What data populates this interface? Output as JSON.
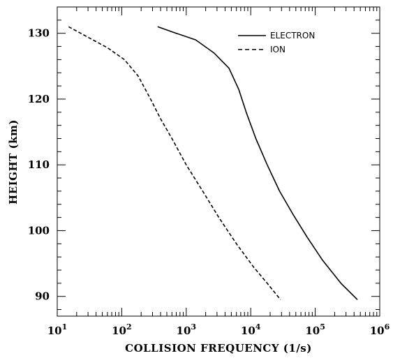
{
  "chart_data": {
    "type": "line",
    "xlabel": "COLLISION FREQUENCY (1/s)",
    "ylabel": "HEIGHT (km)",
    "xscale": "log",
    "xlim": [
      10,
      1000000
    ],
    "ylim": [
      87,
      134
    ],
    "x_ticks": [
      {
        "value": 10,
        "base": "10",
        "exp": "1"
      },
      {
        "value": 100,
        "base": "10",
        "exp": "2"
      },
      {
        "value": 1000,
        "base": "10",
        "exp": "3"
      },
      {
        "value": 10000,
        "base": "10",
        "exp": "4"
      },
      {
        "value": 100000,
        "base": "10",
        "exp": "5"
      },
      {
        "value": 1000000,
        "base": "10",
        "exp": "6"
      }
    ],
    "y_ticks": [
      {
        "value": 90,
        "label": "90"
      },
      {
        "value": 100,
        "label": "100"
      },
      {
        "value": 110,
        "label": "110"
      },
      {
        "value": 120,
        "label": "120"
      },
      {
        "value": 130,
        "label": "130"
      }
    ],
    "legend_position": "top-right",
    "series": [
      {
        "name": "ELECTRON",
        "style": "solid",
        "points": [
          [
            360,
            131
          ],
          [
            700,
            130
          ],
          [
            1400,
            129
          ],
          [
            2700,
            127
          ],
          [
            4600,
            124.7
          ],
          [
            6500,
            121.5
          ],
          [
            8500,
            118
          ],
          [
            12000,
            114
          ],
          [
            18000,
            110
          ],
          [
            28000,
            106
          ],
          [
            45000,
            102.5
          ],
          [
            75000,
            99
          ],
          [
            130000,
            95.5
          ],
          [
            250000,
            92
          ],
          [
            450000,
            89.5
          ]
        ]
      },
      {
        "name": "ION",
        "style": "dashed",
        "points": [
          [
            15,
            131
          ],
          [
            30,
            129.4
          ],
          [
            60,
            127.8
          ],
          [
            110,
            126
          ],
          [
            180,
            123.5
          ],
          [
            280,
            120
          ],
          [
            400,
            117
          ],
          [
            600,
            114
          ],
          [
            1000,
            110
          ],
          [
            1800,
            106
          ],
          [
            3200,
            102
          ],
          [
            6000,
            98
          ],
          [
            11000,
            94.5
          ],
          [
            18000,
            92
          ],
          [
            29000,
            89.5
          ]
        ]
      }
    ]
  }
}
